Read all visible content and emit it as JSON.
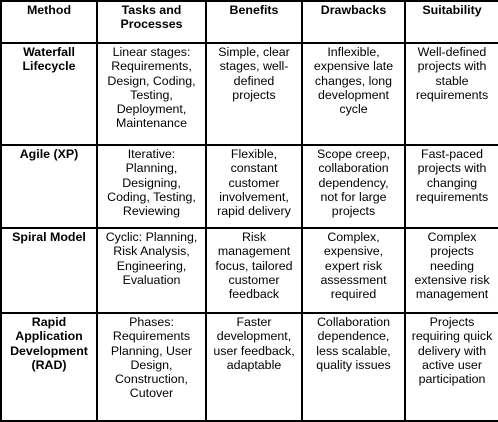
{
  "table": {
    "headers": [
      "Method",
      "Tasks and\nProcesses",
      "Benefits",
      "Drawbacks",
      "Suitability"
    ],
    "rows": [
      {
        "method": "Waterfall\nLifecycle",
        "tasks": "Linear stages:\nRequirements,\nDesign, Coding,\nTesting,\nDeployment,\nMaintenance",
        "benefits": "Simple, clear\nstages, well-\ndefined\nprojects",
        "drawbacks": "Inflexible,\nexpensive late\nchanges, long\ndevelopment\ncycle",
        "suitability": "Well-defined\nprojects with\nstable\nrequirements"
      },
      {
        "method": "Agile (XP)",
        "tasks": "Iterative:\nPlanning,\nDesigning,\nCoding, Testing,\nReviewing",
        "benefits": "Flexible,\nconstant\ncustomer\ninvolvement,\nrapid delivery",
        "drawbacks": "Scope creep,\ncollaboration\ndependency,\nnot for large\nprojects",
        "suitability": "Fast-paced\nprojects with\nchanging\nrequirements"
      },
      {
        "method": "Spiral Model",
        "tasks": "Cyclic: Planning,\nRisk Analysis,\nEngineering,\nEvaluation",
        "benefits": "Risk\nmanagement\nfocus, tailored\ncustomer\nfeedback",
        "drawbacks": "Complex,\nexpensive,\nexpert risk\nassessment\nrequired",
        "suitability": "Complex\nprojects\nneeding\nextensive risk\nmanagement"
      },
      {
        "method": "Rapid\nApplication\nDevelopment\n(RAD)",
        "tasks": "Phases:\nRequirements\nPlanning, User\nDesign,\nConstruction,\nCutover",
        "benefits": "Faster\ndevelopment,\nuser feedback,\nadaptable",
        "drawbacks": "Collaboration\ndependence,\nless scalable,\nquality issues",
        "suitability": "Projects\nrequiring quick\ndelivery with\nactive user\nparticipation"
      }
    ]
  }
}
